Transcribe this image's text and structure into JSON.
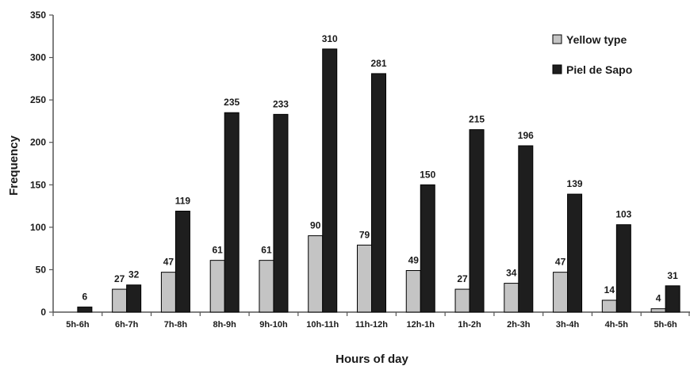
{
  "chart_data": {
    "type": "bar",
    "xlabel": "Hours of day",
    "ylabel": "Frequency",
    "ylim": [
      0,
      350
    ],
    "yticks": [
      0,
      50,
      100,
      150,
      200,
      250,
      300,
      350
    ],
    "categories": [
      "5h-6h",
      "6h-7h",
      "7h-8h",
      "8h-9h",
      "9h-10h",
      "10h-11h",
      "11h-12h",
      "12h-1h",
      "1h-2h",
      "2h-3h",
      "3h-4h",
      "4h-5h",
      "5h-6h"
    ],
    "series": [
      {
        "name": "Yellow type",
        "color": "#c4c4c4",
        "values": [
          null,
          27,
          47,
          61,
          61,
          90,
          79,
          49,
          27,
          34,
          47,
          14,
          4
        ]
      },
      {
        "name": "Piel de Sapo",
        "color": "#1e1e1e",
        "values": [
          6,
          32,
          119,
          235,
          233,
          310,
          281,
          150,
          215,
          196,
          139,
          103,
          31
        ]
      }
    ],
    "legend_position": "top-right",
    "grid": false
  }
}
